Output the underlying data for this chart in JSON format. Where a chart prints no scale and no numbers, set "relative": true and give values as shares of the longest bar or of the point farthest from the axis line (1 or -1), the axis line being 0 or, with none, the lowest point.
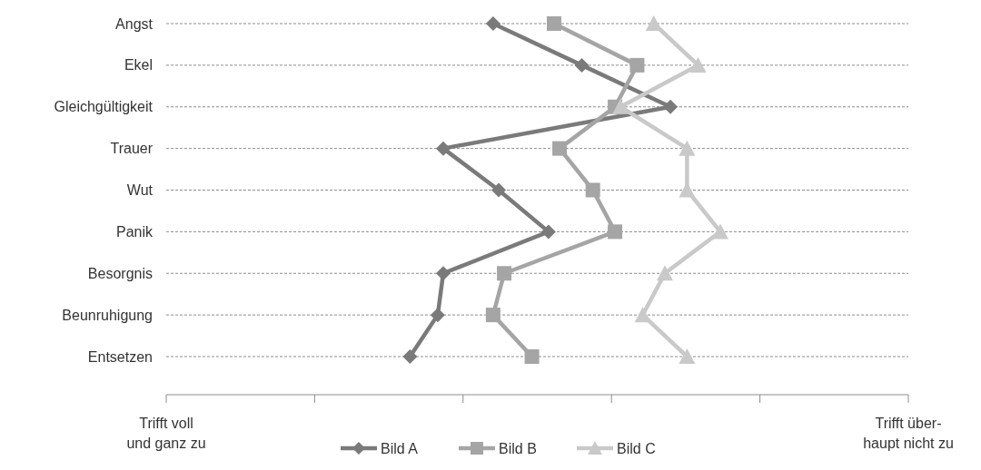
{
  "chart_data": {
    "type": "line",
    "orientation": "horizontal",
    "relative": true,
    "categories": [
      "Angst",
      "Ekel",
      "Gleichgültigkeit",
      "Trauer",
      "Wut",
      "Panik",
      "Besorgnis",
      "Beunruhigung",
      "Entsetzen"
    ],
    "series": [
      {
        "name": "Bild A",
        "color": "#7a7a7a",
        "marker": "diamond",
        "values": [
          0.59,
          0.75,
          0.91,
          0.5,
          0.6,
          0.69,
          0.5,
          0.49,
          0.44
        ]
      },
      {
        "name": "Bild B",
        "color": "#a5a5a5",
        "marker": "square",
        "values": [
          0.7,
          0.85,
          0.81,
          0.71,
          0.77,
          0.81,
          0.61,
          0.59,
          0.66
        ]
      },
      {
        "name": "Bild C",
        "color": "#c9c9c9",
        "marker": "triangle",
        "values": [
          0.88,
          0.96,
          0.82,
          0.94,
          0.94,
          1,
          0.9,
          0.86,
          0.94
        ]
      }
    ],
    "annotations": [
      "Trifft voll\nund ganz zu",
      "Trifft über-\nhaupt nicht zu"
    ],
    "grid": "y",
    "legend": "bottom",
    "line_style": "solid"
  }
}
